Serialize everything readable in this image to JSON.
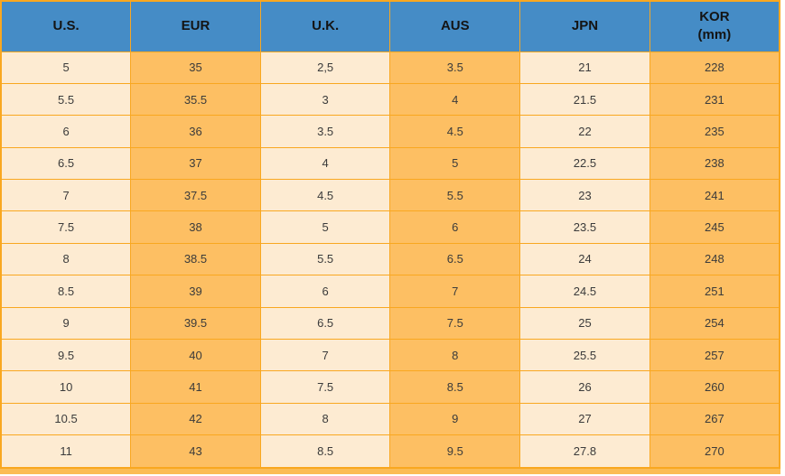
{
  "colors": {
    "header_bg": "#458CC6",
    "column_light": "#FDEBD2",
    "column_orange": "#FDBF63",
    "grid_border": "#F9A720",
    "bottom_band": "#FBBC55",
    "header_text": "#141414",
    "cell_text": "#3B3B3B"
  },
  "chart_data": {
    "type": "table",
    "columns": [
      {
        "label": "U.S.",
        "sub": ""
      },
      {
        "label": "EUR",
        "sub": ""
      },
      {
        "label": "U.K.",
        "sub": ""
      },
      {
        "label": "AUS",
        "sub": ""
      },
      {
        "label": "JPN",
        "sub": ""
      },
      {
        "label": "KOR",
        "sub": "(mm)"
      }
    ],
    "rows": [
      [
        "5",
        "35",
        "2,5",
        "3.5",
        "21",
        "228"
      ],
      [
        "5.5",
        "35.5",
        "3",
        "4",
        "21.5",
        "231"
      ],
      [
        "6",
        "36",
        "3.5",
        "4.5",
        "22",
        "235"
      ],
      [
        "6.5",
        "37",
        "4",
        "5",
        "22.5",
        "238"
      ],
      [
        "7",
        "37.5",
        "4.5",
        "5.5",
        "23",
        "241"
      ],
      [
        "7.5",
        "38",
        "5",
        "6",
        "23.5",
        "245"
      ],
      [
        "8",
        "38.5",
        "5.5",
        "6.5",
        "24",
        "248"
      ],
      [
        "8.5",
        "39",
        "6",
        "7",
        "24.5",
        "251"
      ],
      [
        "9",
        "39.5",
        "6.5",
        "7.5",
        "25",
        "254"
      ],
      [
        "9.5",
        "40",
        "7",
        "8",
        "25.5",
        "257"
      ],
      [
        "10",
        "41",
        "7.5",
        "8.5",
        "26",
        "260"
      ],
      [
        "10.5",
        "42",
        "8",
        "9",
        "27",
        "267"
      ],
      [
        "11",
        "43",
        "8.5",
        "9.5",
        "27.8",
        "270"
      ]
    ]
  }
}
